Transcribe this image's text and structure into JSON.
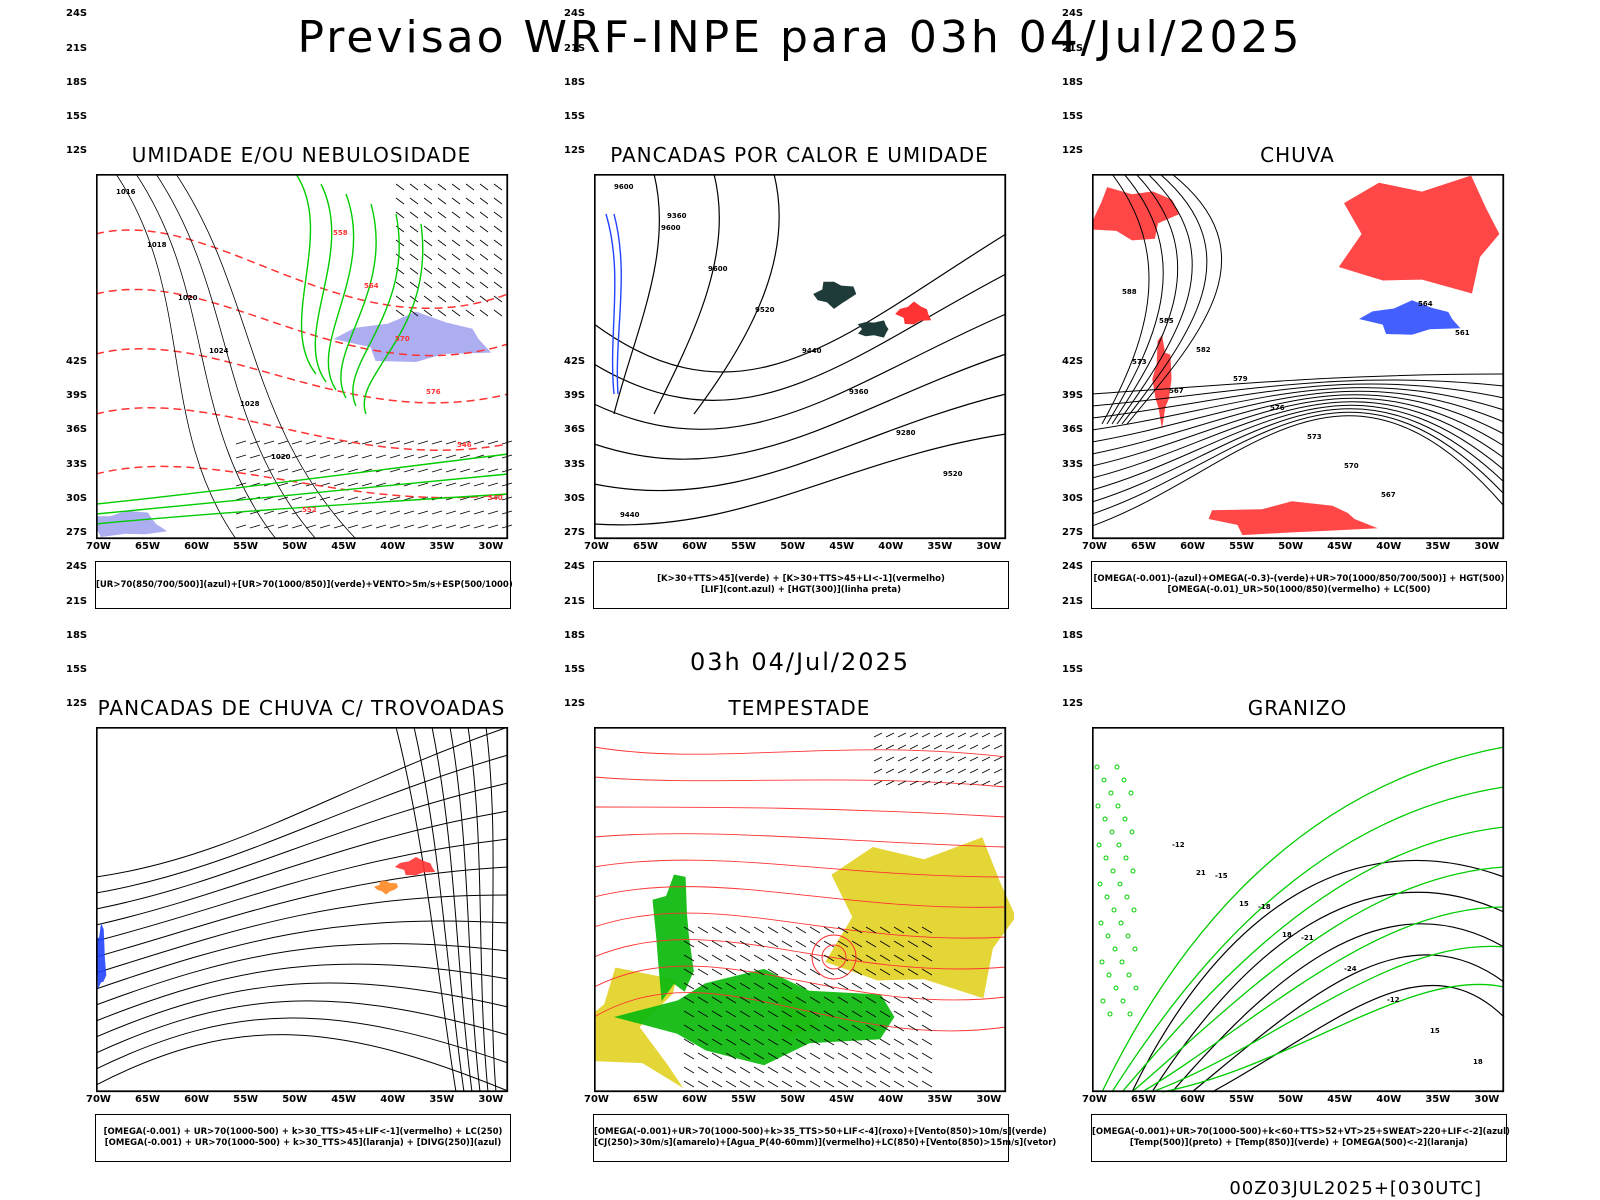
{
  "title": "Previsao WRF-INPE  para 03h 04/Jul/2025",
  "mid_title": "03h 04/Jul/2025",
  "footer": "00Z03JUL2025+[030UTC]",
  "chart_data": [
    {
      "type": "map",
      "title": "UMIDADE E/OU NEBULOSIDADE",
      "legend": [
        "[UR>70(850/700/500)](azul)+[UR>70(1000/850)](verde)+VENTO>5m/s+ESP(500/1000)"
      ],
      "x_ticks": [
        "70W",
        "65W",
        "60W",
        "55W",
        "50W",
        "45W",
        "40W",
        "35W",
        "30W"
      ],
      "y_ticks": [
        "12S",
        "15S",
        "18S",
        "21S",
        "24S",
        "27S",
        "30S",
        "33S",
        "36S",
        "39S",
        "42S"
      ],
      "contour_labels": [
        "1016",
        "1018",
        "1020",
        "1024",
        "1028",
        "1020",
        "552",
        "558",
        "564",
        "570",
        "576",
        "546",
        "540"
      ]
    },
    {
      "type": "map",
      "title": "PANCADAS POR CALOR E UMIDADE",
      "legend": [
        "[K>30+TTS>45](verde) + [K>30+TTS>45+LI<-1](vermelho)",
        "[LIF](cont.azul) + [HGT(300)](linha preta)"
      ],
      "x_ticks": [
        "70W",
        "65W",
        "60W",
        "55W",
        "50W",
        "45W",
        "40W",
        "35W",
        "30W"
      ],
      "y_ticks": [
        "12S",
        "15S",
        "18S",
        "21S",
        "24S",
        "27S",
        "30S",
        "33S",
        "36S",
        "39S",
        "42S"
      ],
      "contour_labels": [
        "9600",
        "9600",
        "9600",
        "9520",
        "9440",
        "9360",
        "9280",
        "9520",
        "9440",
        "9360"
      ]
    },
    {
      "type": "map",
      "title": "CHUVA",
      "legend": [
        "[OMEGA(-0.001)-(azul)+OMEGA(-0.3)-(verde)+UR>70(1000/850/700/500)] + HGT(500)",
        "[OMEGA(-0.01)_UR>50(1000/850)(vermelho) + LC(500)"
      ],
      "x_ticks": [
        "70W",
        "65W",
        "60W",
        "55W",
        "50W",
        "45W",
        "40W",
        "35W",
        "30W"
      ],
      "y_ticks": [
        "12S",
        "15S",
        "18S",
        "21S",
        "24S",
        "27S",
        "30S",
        "33S",
        "36S",
        "39S",
        "42S"
      ],
      "contour_labels": [
        "588",
        "585",
        "582",
        "579",
        "576",
        "573",
        "570",
        "567",
        "564",
        "561",
        "573",
        "567"
      ]
    },
    {
      "type": "map",
      "title": "PANCADAS DE CHUVA C/ TROVOADAS",
      "legend": [
        "[OMEGA(-0.001) + UR>70(1000-500) + k>30_TTS>45+LIF<-1](vermelho) + LC(250)",
        "[OMEGA(-0.001) + UR>70(1000-500) + k>30_TTS>45](laranja) + [DIVG(250)](azul)"
      ],
      "x_ticks": [
        "70W",
        "65W",
        "60W",
        "55W",
        "50W",
        "45W",
        "40W",
        "35W",
        "30W"
      ],
      "y_ticks": [
        "12S",
        "15S",
        "18S",
        "21S",
        "24S",
        "27S",
        "30S",
        "33S",
        "36S",
        "39S",
        "42S"
      ]
    },
    {
      "type": "map",
      "title": "TEMPESTADE",
      "legend": [
        "[OMEGA(-0.001)+UR>70(1000-500)+k>35_TTS>50+LIF<-4](roxo)+[Vento(850)>10m/s](verde)",
        "[CJ(250)>30m/s](amarelo)+[Agua_P(40-60mm)](vermelho)+LC(850)+[Vento(850)>15m/s](vetor)"
      ],
      "x_ticks": [
        "70W",
        "65W",
        "60W",
        "55W",
        "50W",
        "45W",
        "40W",
        "35W",
        "30W"
      ],
      "y_ticks": [
        "12S",
        "15S",
        "18S",
        "21S",
        "24S",
        "27S",
        "30S",
        "33S",
        "36S",
        "39S",
        "42S"
      ]
    },
    {
      "type": "map",
      "title": "GRANIZO",
      "legend": [
        "[OMEGA(-0.001)+UR>70(1000-500)+k<60+TTS>52+VT>25+SWEAT>220+LIF<-2](azul)",
        "[Temp(500)](preto) + [Temp(850)](verde) + [OMEGA(500)<-2](laranja)"
      ],
      "x_ticks": [
        "70W",
        "65W",
        "60W",
        "55W",
        "50W",
        "45W",
        "40W",
        "35W",
        "30W"
      ],
      "y_ticks": [
        "12S",
        "15S",
        "18S",
        "21S",
        "24S",
        "27S",
        "30S",
        "33S",
        "36S",
        "39S",
        "42S"
      ],
      "contour_labels": [
        "-12",
        "-15",
        "-18",
        "-21",
        "-24",
        "-12",
        "15",
        "18",
        "21",
        "15",
        "18"
      ]
    }
  ],
  "colors": {
    "border": "#000000",
    "humid_green": "#00cc00",
    "humid_blue": "#9999ee",
    "geopot_red": "#ff3333",
    "storm_yellow": "#e4d42c",
    "wind_green": "#11bb11",
    "dark_cell": "#1e3b3a",
    "orange": "#ff8822",
    "lif_blue": "#2244ff"
  }
}
